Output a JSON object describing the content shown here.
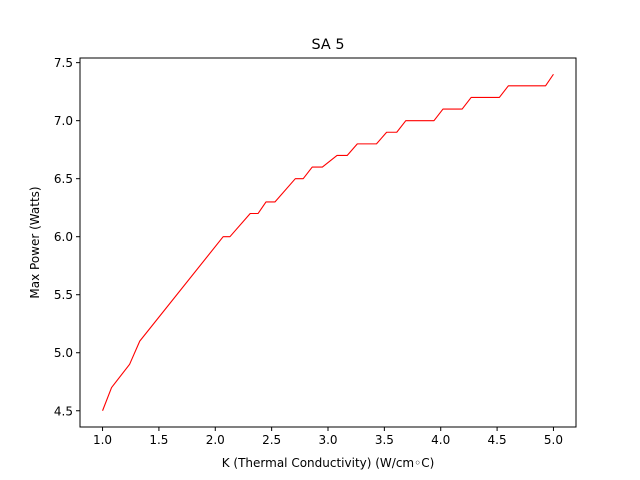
{
  "chart_data": {
    "type": "line",
    "title": "SA 5",
    "xlabel": "K (Thermal Conductivity) (W/cm◦C)",
    "ylabel": "Max Power (Watts)",
    "xlim": [
      0.8,
      5.2
    ],
    "ylim": [
      4.36,
      7.54
    ],
    "xticks": [
      1.0,
      1.5,
      2.0,
      2.5,
      3.0,
      3.5,
      4.0,
      4.5,
      5.0
    ],
    "yticks": [
      4.5,
      5.0,
      5.5,
      6.0,
      6.5,
      7.0,
      7.5
    ],
    "grid": false,
    "legend": "none",
    "series": [
      {
        "color": "#ff0000",
        "x": [
          1.0,
          1.08,
          1.24,
          1.33,
          2.07,
          2.13,
          2.31,
          2.38,
          2.45,
          2.53,
          2.71,
          2.78,
          2.86,
          2.95,
          3.08,
          3.17,
          3.26,
          3.43,
          3.52,
          3.61,
          3.69,
          3.94,
          4.02,
          4.19,
          4.27,
          4.52,
          4.6,
          4.93,
          5.0
        ],
        "y": [
          4.5,
          4.7,
          4.9,
          5.1,
          6.0,
          6.0,
          6.2,
          6.2,
          6.3,
          6.3,
          6.5,
          6.5,
          6.6,
          6.6,
          6.7,
          6.7,
          6.8,
          6.8,
          6.9,
          6.9,
          7.0,
          7.0,
          7.1,
          7.1,
          7.2,
          7.2,
          7.3,
          7.3,
          7.4
        ]
      }
    ]
  }
}
